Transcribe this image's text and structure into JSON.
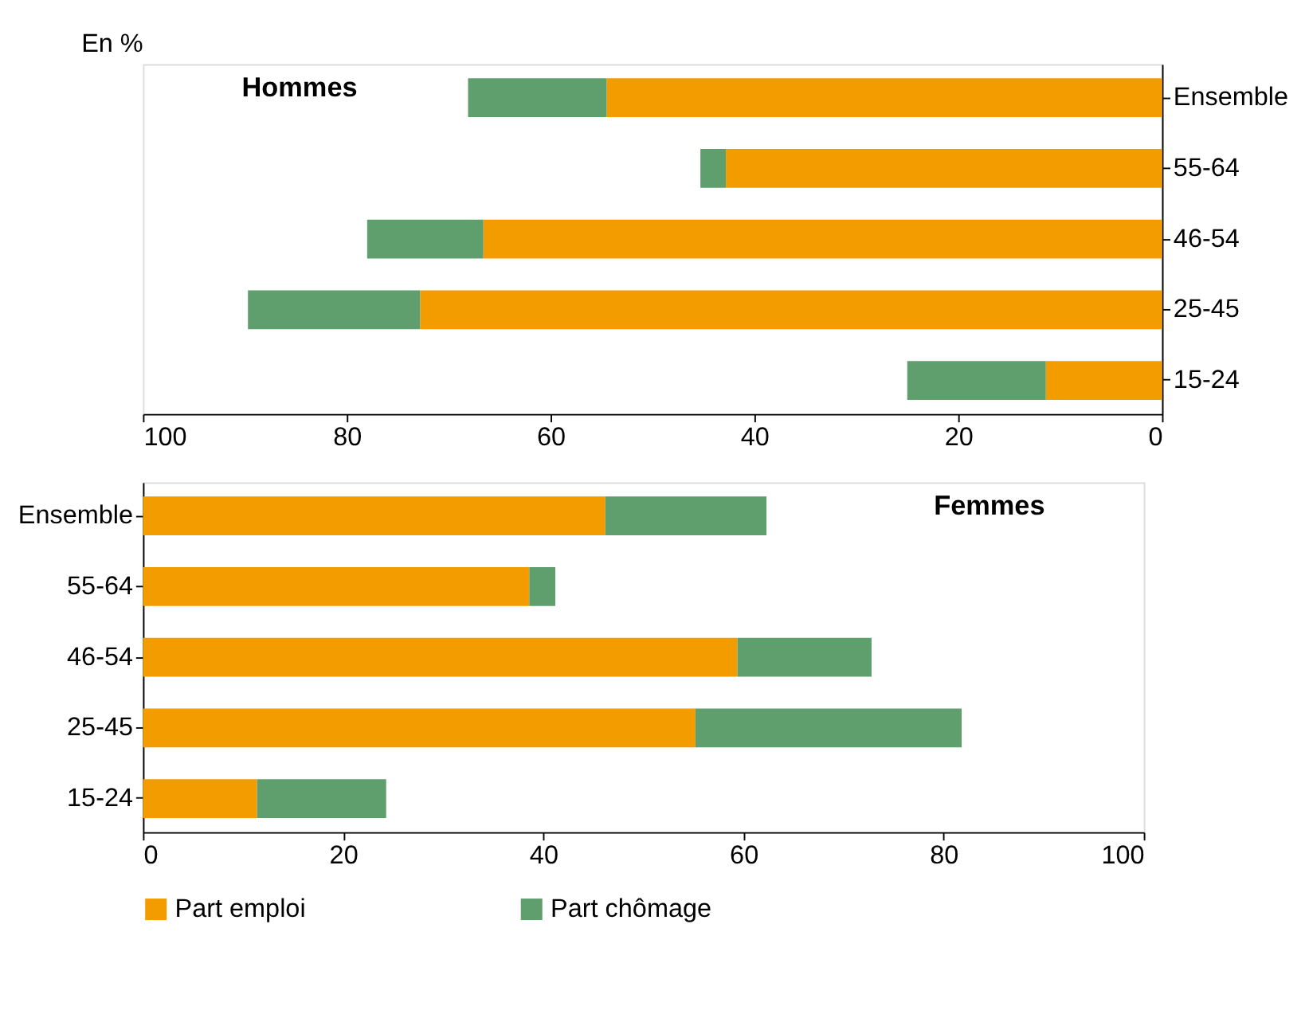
{
  "chart_data": [
    {
      "type": "bar",
      "title": "Hommes",
      "orientation": "horizontal",
      "stacked": true,
      "categories": [
        "Ensemble",
        "55-64",
        "46-54",
        "25-45",
        "15-24"
      ],
      "series": [
        {
          "name": "Part emploi",
          "color": "#f39c00",
          "values": [
            54.5,
            42.8,
            66.6,
            72.8,
            11.4
          ]
        },
        {
          "name": "Part chômage",
          "color": "#5f9f6e",
          "values": [
            13.6,
            2.5,
            11.4,
            16.9,
            13.6
          ]
        }
      ],
      "xlim": [
        100,
        0
      ],
      "xticks": [
        100,
        80,
        60,
        40,
        20,
        0
      ],
      "grid": false,
      "legend": "bottom",
      "annotations": [
        "En %"
      ]
    },
    {
      "type": "bar",
      "title": "Femmes",
      "orientation": "horizontal",
      "stacked": true,
      "categories": [
        "Ensemble",
        "55-64",
        "46-54",
        "25-45",
        "15-24"
      ],
      "series": [
        {
          "name": "Part emploi",
          "color": "#f39c00",
          "values": [
            46.2,
            38.6,
            59.4,
            55.2,
            11.4
          ]
        },
        {
          "name": "Part chômage",
          "color": "#5f9f6e",
          "values": [
            16.1,
            2.6,
            13.4,
            26.6,
            12.9
          ]
        }
      ],
      "xlim": [
        0,
        100
      ],
      "xticks": [
        0,
        20,
        40,
        60,
        80,
        100
      ],
      "grid": false,
      "legend": "bottom"
    }
  ]
}
